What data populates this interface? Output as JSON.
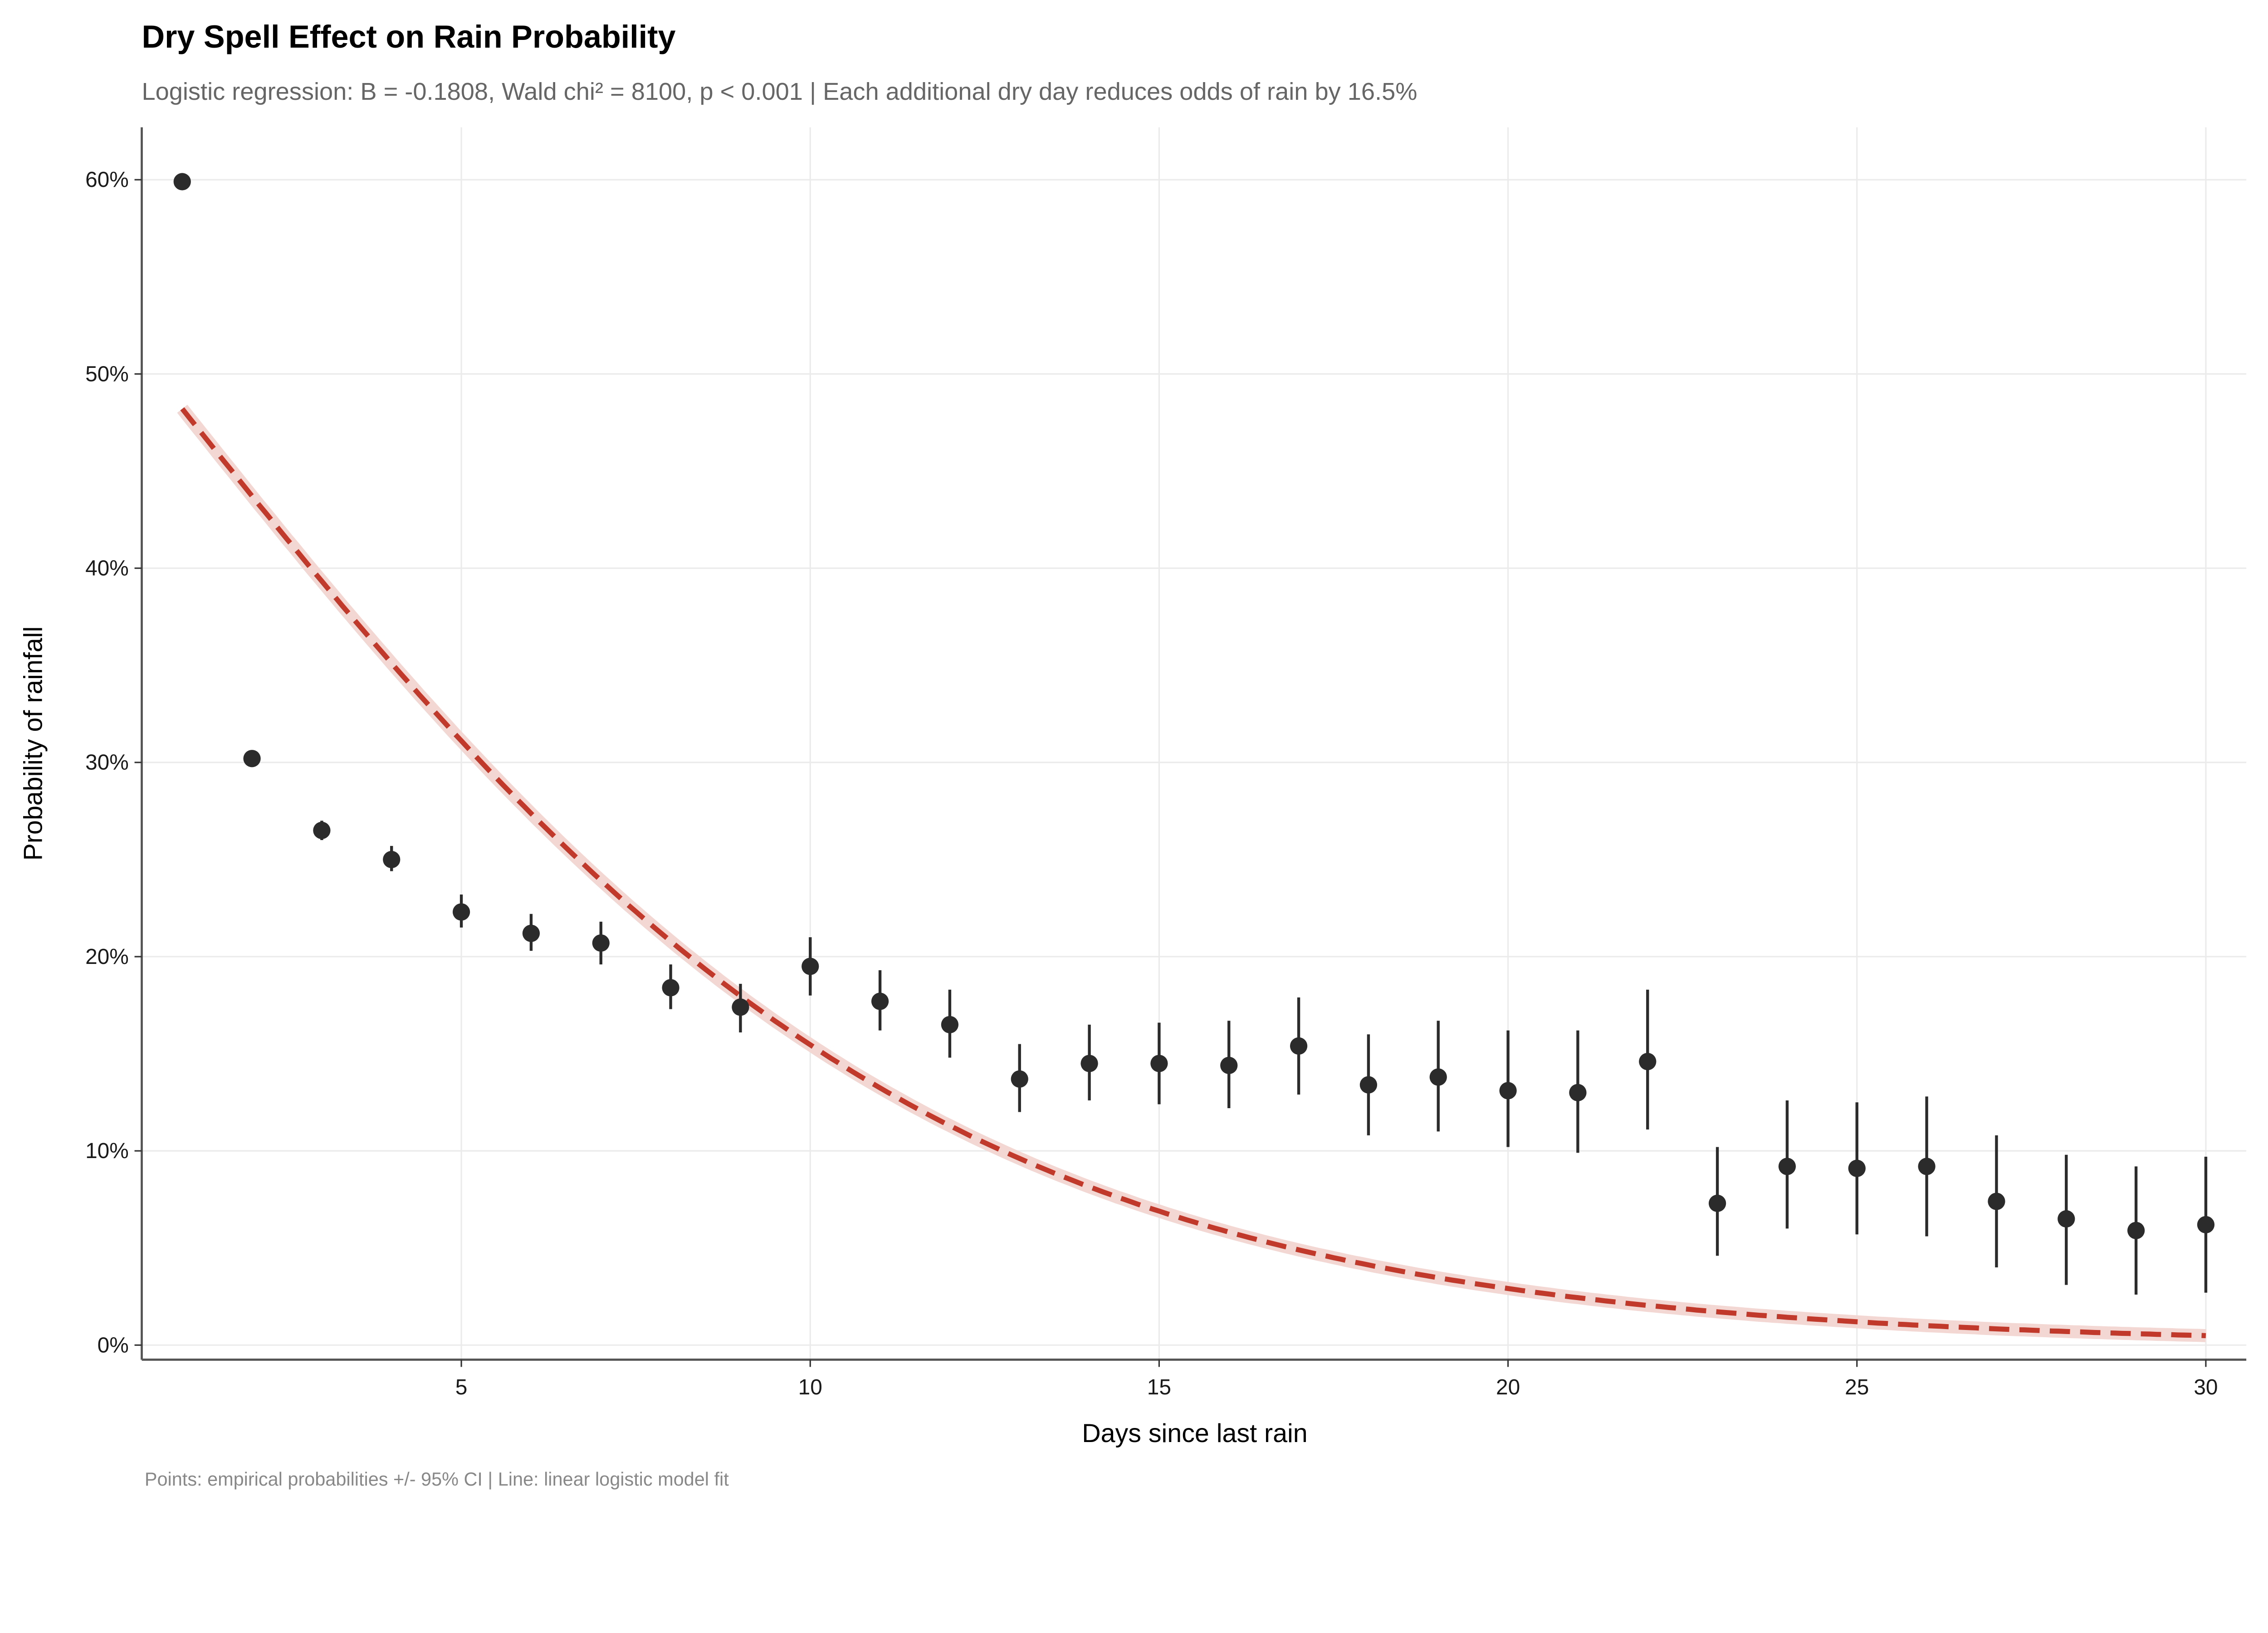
{
  "chart_data": {
    "type": "scatter",
    "title": "Dry Spell Effect on Rain Probability",
    "subtitle": "Logistic regression: B = -0.1808, Wald chi² = 8100, p < 0.001 | Each additional dry day reduces odds of rain by 16.5%",
    "caption": "Points: empirical probabilities +/- 95% CI | Line: linear logistic model fit",
    "xlabel": "Days since last rain",
    "ylabel": "Probability of rainfall",
    "xlim": [
      0.42,
      30.58
    ],
    "ylim": [
      -0.0075,
      0.627
    ],
    "x_ticks": [
      5,
      10,
      15,
      20,
      25,
      30
    ],
    "x_tick_labels": [
      "5",
      "10",
      "15",
      "20",
      "25",
      "30"
    ],
    "y_ticks": [
      0,
      0.1,
      0.2,
      0.3,
      0.4,
      0.5,
      0.6
    ],
    "y_tick_labels": [
      "0%",
      "10%",
      "20%",
      "30%",
      "40%",
      "50%",
      "60%"
    ],
    "grid": true,
    "model": {
      "B": -0.1808,
      "line_style": "dashed"
    },
    "colors": {
      "points": "#2b2b2b",
      "fit_line": "#c0392b",
      "fit_band": "#f2d7d3",
      "axis": "#555555"
    },
    "points": {
      "x": [
        1,
        2,
        3,
        4,
        5,
        6,
        7,
        8,
        9,
        10,
        11,
        12,
        13,
        14,
        15,
        16,
        17,
        18,
        19,
        20,
        21,
        22,
        23,
        24,
        25,
        26,
        27,
        28,
        29,
        30
      ],
      "y": [
        0.599,
        0.302,
        0.265,
        0.25,
        0.223,
        0.212,
        0.207,
        0.184,
        0.174,
        0.195,
        0.177,
        0.165,
        0.137,
        0.145,
        0.145,
        0.144,
        0.154,
        0.134,
        0.138,
        0.131,
        0.13,
        0.146,
        0.073,
        0.092,
        0.091,
        0.092,
        0.074,
        0.065,
        0.059,
        0.062
      ],
      "ci_low": [
        0.596,
        0.3,
        0.26,
        0.244,
        0.215,
        0.203,
        0.196,
        0.173,
        0.161,
        0.18,
        0.162,
        0.148,
        0.12,
        0.126,
        0.124,
        0.122,
        0.129,
        0.108,
        0.11,
        0.102,
        0.099,
        0.111,
        0.046,
        0.06,
        0.057,
        0.056,
        0.04,
        0.031,
        0.026,
        0.027
      ],
      "ci_high": [
        0.602,
        0.306,
        0.27,
        0.257,
        0.232,
        0.222,
        0.218,
        0.196,
        0.186,
        0.21,
        0.193,
        0.183,
        0.155,
        0.165,
        0.166,
        0.167,
        0.179,
        0.16,
        0.167,
        0.162,
        0.162,
        0.183,
        0.102,
        0.126,
        0.125,
        0.128,
        0.108,
        0.098,
        0.092,
        0.097
      ]
    }
  }
}
